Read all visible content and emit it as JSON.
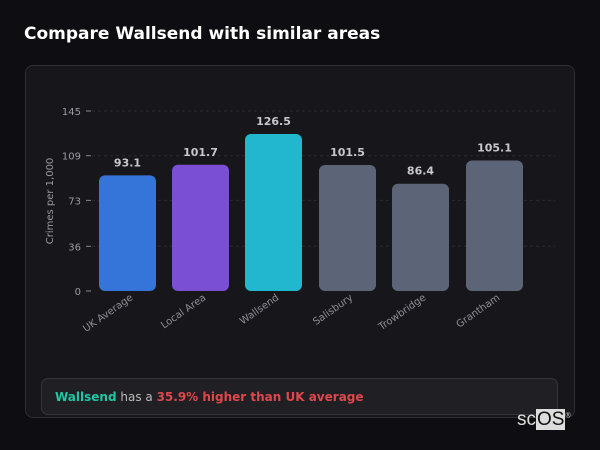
{
  "title": "Compare Wallsend with similar areas",
  "chart_data": {
    "type": "bar",
    "title": "",
    "xlabel": "",
    "ylabel": "Crimes per 1,000",
    "ylim": [
      0,
      145
    ],
    "yticks": [
      0,
      36,
      73,
      109,
      145
    ],
    "grid": true,
    "categories": [
      "UK Average",
      "Local Area",
      "Wallsend",
      "Salisbury",
      "Trowbridge",
      "Grantham"
    ],
    "values": [
      93.1,
      101.7,
      126.5,
      101.5,
      86.4,
      105.1
    ],
    "labels": [
      "93.1",
      "101.7",
      "126.5",
      "101.5",
      "86.4",
      "105.1"
    ],
    "colors": [
      "#3574d9",
      "#7b4fd3",
      "#21b8cf",
      "#5c6577",
      "#5c6577",
      "#5c6577"
    ]
  },
  "summary": {
    "area": "Wallsend",
    "connector": " has a ",
    "comparison": "35.9% higher than UK average",
    "area_color": "#1fc7a4",
    "comparison_color": "#e0474c"
  },
  "logo": {
    "text_a": "sc",
    "text_b": "OS",
    "mark": "®"
  }
}
